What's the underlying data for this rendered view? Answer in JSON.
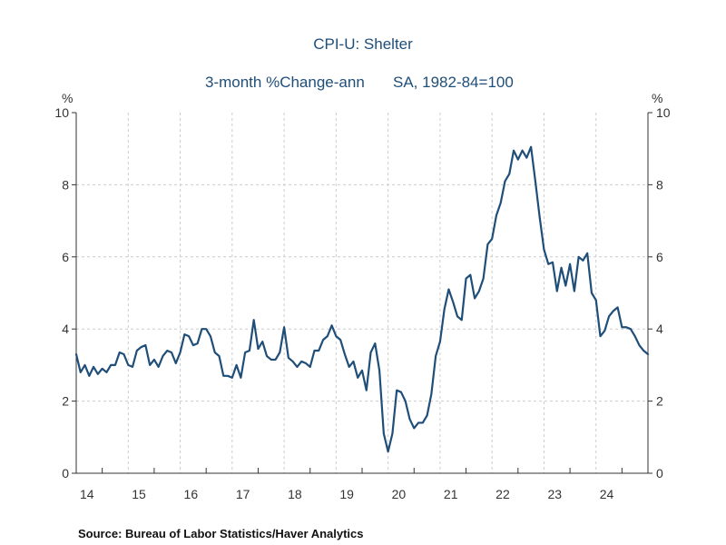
{
  "chart_data": {
    "type": "line",
    "title": "CPI-U: Shelter",
    "subtitle_left": "3-month %Change-ann",
    "subtitle_right": "SA, 1982-84=100",
    "ylabel_left": "%",
    "ylabel_right": "%",
    "ylim": [
      0,
      10
    ],
    "yticks": [
      "0",
      "2",
      "4",
      "6",
      "8",
      "10"
    ],
    "xlim": [
      2014.0,
      2025.0
    ],
    "xtick_labels": [
      "14",
      "15",
      "16",
      "17",
      "18",
      "19",
      "20",
      "21",
      "22",
      "23",
      "24"
    ],
    "grid": true,
    "line_color": "#1f4e79",
    "series": [
      {
        "name": "CPI-U: Shelter 3-month %Change-ann",
        "x_start": 2014.0,
        "step": 0.0833333,
        "values": [
          3.3,
          2.8,
          3.0,
          2.7,
          2.95,
          2.75,
          2.9,
          2.8,
          3.0,
          3.0,
          3.35,
          3.3,
          3.0,
          2.95,
          3.4,
          3.5,
          3.55,
          3.0,
          3.15,
          2.95,
          3.25,
          3.4,
          3.35,
          3.05,
          3.35,
          3.85,
          3.8,
          3.55,
          3.6,
          4.0,
          4.0,
          3.8,
          3.35,
          3.25,
          2.7,
          2.7,
          2.65,
          3.0,
          2.65,
          3.35,
          3.4,
          4.25,
          3.45,
          3.65,
          3.25,
          3.15,
          3.15,
          3.35,
          4.05,
          3.2,
          3.1,
          2.95,
          3.1,
          3.05,
          2.95,
          3.4,
          3.4,
          3.7,
          3.8,
          4.1,
          3.8,
          3.7,
          3.3,
          2.95,
          3.1,
          2.65,
          2.85,
          2.3,
          3.35,
          3.6,
          2.85,
          1.1,
          0.6,
          1.1,
          2.3,
          2.25,
          2.0,
          1.5,
          1.25,
          1.4,
          1.4,
          1.6,
          2.2,
          3.25,
          3.65,
          4.55,
          5.1,
          4.75,
          4.35,
          4.25,
          5.4,
          5.5,
          4.85,
          5.05,
          5.4,
          6.35,
          6.5,
          7.15,
          7.5,
          8.1,
          8.3,
          8.95,
          8.7,
          8.95,
          8.75,
          9.05,
          8.1,
          7.1,
          6.2,
          5.8,
          5.85,
          5.05,
          5.7,
          5.2,
          5.8,
          5.05,
          6.0,
          5.9,
          6.1,
          5.0,
          4.8,
          3.8,
          3.95,
          4.35,
          4.5,
          4.6,
          4.05,
          4.05,
          4.0,
          3.8,
          3.55,
          3.4,
          3.3
        ]
      }
    ]
  },
  "source": "Source:  Bureau of Labor Statistics/Haver Analytics"
}
